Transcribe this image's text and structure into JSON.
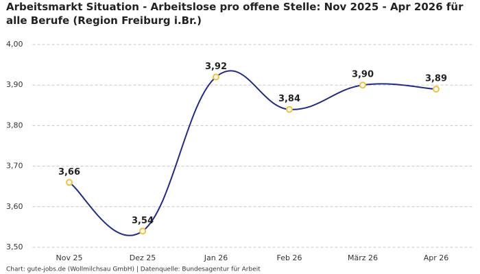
{
  "chart_data": {
    "type": "line",
    "title": "Arbeitsmarkt Situation - Arbeitslose pro offene Stelle: Nov 2025 - Apr 2026 für alle Berufe (Region Freiburg i.Br.)",
    "categories": [
      "Nov 25",
      "Dez 25",
      "Jan 26",
      "Feb 26",
      "März 26",
      "Apr 26"
    ],
    "values": [
      3.66,
      3.54,
      3.92,
      3.84,
      3.9,
      3.89
    ],
    "value_labels": [
      "3,66",
      "3,54",
      "3,92",
      "3,84",
      "3,90",
      "3,89"
    ],
    "color": "#1f2a8c",
    "marker_color": "#f2c230",
    "ylim": [
      3.5,
      4.0
    ],
    "yticks": [
      {
        "value": 3.5,
        "label": "3,50"
      },
      {
        "value": 3.6,
        "label": "3,60"
      },
      {
        "value": 3.7,
        "label": "3,70"
      },
      {
        "value": 3.8,
        "label": "3,80"
      },
      {
        "value": 3.9,
        "label": "3,90"
      },
      {
        "value": 4.0,
        "label": "4,00"
      }
    ],
    "grid": true,
    "source": "Chart: gute-jobs.de (Wollmilchsau GmbH) | Datenquelle: Bundesagentur für Arbeit"
  }
}
